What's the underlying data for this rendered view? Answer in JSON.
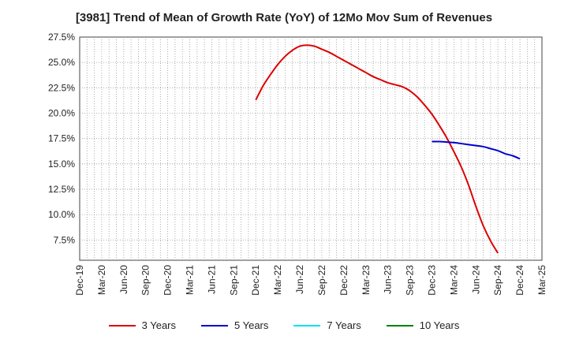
{
  "chart_data": {
    "type": "line",
    "title": "[3981]  Trend of Mean of Growth Rate (YoY) of 12Mo Mov Sum of Revenues",
    "xlabel": "",
    "ylabel": "",
    "x_categories": [
      "Dec-19",
      "Mar-20",
      "Jun-20",
      "Sep-20",
      "Dec-20",
      "Mar-21",
      "Jun-21",
      "Sep-21",
      "Dec-21",
      "Mar-22",
      "Jun-22",
      "Sep-22",
      "Dec-22",
      "Mar-23",
      "Jun-23",
      "Sep-23",
      "Dec-23",
      "Mar-24",
      "Jun-24",
      "Sep-24",
      "Dec-24",
      "Mar-25"
    ],
    "ylim": [
      5.5,
      27.5
    ],
    "y_ticks": [
      7.5,
      10.0,
      12.5,
      15.0,
      17.5,
      20.0,
      22.5,
      25.0,
      27.5
    ],
    "y_tick_labels": [
      "7.5%",
      "10.0%",
      "12.5%",
      "15.0%",
      "17.5%",
      "20.0%",
      "22.5%",
      "25.0%",
      "27.5%"
    ],
    "grid": true,
    "legend_position": "bottom",
    "series": [
      {
        "name": "3 Years",
        "color": "#dd0000",
        "points": [
          [
            "Dec-21",
            21.3
          ],
          [
            "Jan-22",
            22.7
          ],
          [
            "Feb-22",
            23.8
          ],
          [
            "Mar-22",
            24.8
          ],
          [
            "Apr-22",
            25.6
          ],
          [
            "May-22",
            26.2
          ],
          [
            "Jun-22",
            26.6
          ],
          [
            "Jul-22",
            26.7
          ],
          [
            "Aug-22",
            26.6
          ],
          [
            "Sep-22",
            26.3
          ],
          [
            "Oct-22",
            26.0
          ],
          [
            "Nov-22",
            25.6
          ],
          [
            "Dec-22",
            25.2
          ],
          [
            "Jan-23",
            24.8
          ],
          [
            "Feb-23",
            24.4
          ],
          [
            "Mar-23",
            24.0
          ],
          [
            "Apr-23",
            23.6
          ],
          [
            "May-23",
            23.3
          ],
          [
            "Jun-23",
            23.0
          ],
          [
            "Jul-23",
            22.8
          ],
          [
            "Aug-23",
            22.6
          ],
          [
            "Sep-23",
            22.2
          ],
          [
            "Oct-23",
            21.6
          ],
          [
            "Nov-23",
            20.8
          ],
          [
            "Dec-23",
            19.9
          ],
          [
            "Jan-24",
            18.8
          ],
          [
            "Feb-24",
            17.6
          ],
          [
            "Mar-24",
            16.2
          ],
          [
            "Apr-24",
            14.7
          ],
          [
            "May-24",
            12.9
          ],
          [
            "Jun-24",
            10.8
          ],
          [
            "Jul-24",
            8.9
          ],
          [
            "Aug-24",
            7.4
          ],
          [
            "Sep-24",
            6.2
          ]
        ]
      },
      {
        "name": "5 Years",
        "color": "#0000cc",
        "points": [
          [
            "Dec-23",
            17.2
          ],
          [
            "Jan-24",
            17.2
          ],
          [
            "Feb-24",
            17.15
          ],
          [
            "Mar-24",
            17.1
          ],
          [
            "Apr-24",
            17.0
          ],
          [
            "May-24",
            16.9
          ],
          [
            "Jun-24",
            16.8
          ],
          [
            "Jul-24",
            16.7
          ],
          [
            "Aug-24",
            16.5
          ],
          [
            "Sep-24",
            16.3
          ],
          [
            "Oct-24",
            16.0
          ],
          [
            "Nov-24",
            15.8
          ],
          [
            "Dec-24",
            15.5
          ]
        ]
      },
      {
        "name": "7 Years",
        "color": "#00e5ee",
        "points": []
      },
      {
        "name": "10 Years",
        "color": "#008000",
        "points": []
      }
    ]
  }
}
